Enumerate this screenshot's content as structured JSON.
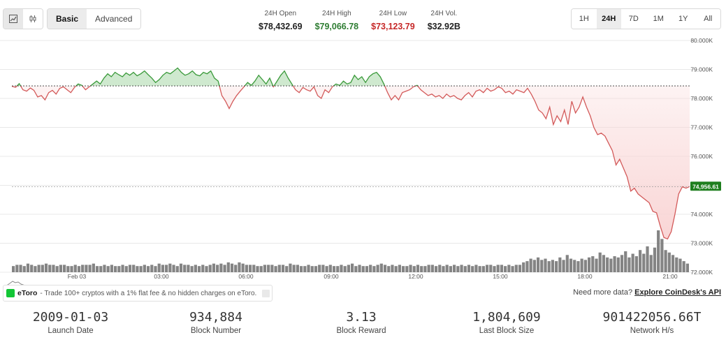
{
  "toolbar": {
    "icons": [
      "line-chart-icon",
      "candlestick-icon"
    ],
    "modes": [
      "Basic",
      "Advanced"
    ],
    "active_mode": "Basic",
    "ranges": [
      "1H",
      "24H",
      "7D",
      "1M",
      "1Y",
      "All"
    ],
    "active_range": "24H"
  },
  "stats": [
    {
      "label": "24H Open",
      "value": "$78,432.69",
      "color": "#222222"
    },
    {
      "label": "24H High",
      "value": "$79,066.78",
      "color": "#2e7d32"
    },
    {
      "label": "24H Low",
      "value": "$73,123.79",
      "color": "#c62828"
    },
    {
      "label": "24H Vol.",
      "value": "$32.92B",
      "color": "#222222"
    }
  ],
  "chart_data": {
    "type": "line",
    "reference_price": 78432.69,
    "current_price_label": "74,956.61",
    "ylim": [
      72000,
      80000
    ],
    "y_ticks": [
      "80.000K",
      "79.000K",
      "78.000K",
      "77.000K",
      "76.000K",
      "75.000K",
      "74.000K",
      "73.000K",
      "72.000K"
    ],
    "x_ticks": [
      "Feb 03",
      "03:00",
      "06:00",
      "09:00",
      "12:00",
      "15:00",
      "18:00",
      "21:00"
    ],
    "colors": {
      "above": "#3a9a3a",
      "below": "#d35a5a",
      "above_fill": "#cfe9cf",
      "below_fill": "#f9d5d5",
      "price_tag": "#1e7e1e",
      "volume": "#6e6e6e"
    },
    "series": [
      {
        "values": [
          78420,
          78380,
          78510,
          78300,
          78250,
          78360,
          78280,
          78050,
          78100,
          77950,
          78200,
          78280,
          78150,
          78350,
          78400,
          78300,
          78200,
          78380,
          78500,
          78450,
          78300,
          78400,
          78500,
          78600,
          78500,
          78700,
          78850,
          78750,
          78900,
          78820,
          78750,
          78880,
          78800,
          78900,
          78780,
          78850,
          78950,
          78820,
          78700,
          78550,
          78650,
          78800,
          78900,
          78850,
          78950,
          79050,
          78900,
          78800,
          78850,
          78950,
          78820,
          78780,
          78900,
          78850,
          78950,
          78700,
          78600,
          78100,
          77900,
          77650,
          77900,
          78100,
          78250,
          78400,
          78550,
          78450,
          78600,
          78800,
          78650,
          78500,
          78700,
          78400,
          78600,
          78800,
          78950,
          78700,
          78500,
          78300,
          78200,
          78380,
          78300,
          78250,
          78400,
          78100,
          78000,
          78300,
          78200,
          78400,
          78500,
          78450,
          78600,
          78500,
          78550,
          78800,
          78650,
          78750,
          78550,
          78750,
          78850,
          78900,
          78750,
          78500,
          78200,
          77950,
          78100,
          77950,
          78200,
          78250,
          78300,
          78400,
          78450,
          78300,
          78200,
          78100,
          78150,
          78050,
          78100,
          78000,
          78150,
          78050,
          78100,
          78000,
          77950,
          78100,
          78200,
          78050,
          78250,
          78300,
          78200,
          78350,
          78250,
          78300,
          78400,
          78350,
          78200,
          78250,
          78150,
          78300,
          78250,
          78200,
          78350,
          78150,
          77900,
          77600,
          77500,
          77300,
          77700,
          77100,
          77400,
          77200,
          77600,
          77100,
          77900,
          77500,
          77700,
          78050,
          77700,
          77400,
          77000,
          76750,
          76800,
          76700,
          76450,
          76200,
          75700,
          75900,
          75600,
          75300,
          74800,
          74900,
          74700,
          74600,
          74500,
          74400,
          74100,
          74050,
          73600,
          73200,
          73150,
          73400,
          74000,
          74700,
          74950,
          74900,
          74956.61
        ]
      }
    ],
    "volume": [
      5,
      6,
      6,
      5,
      7,
      6,
      5,
      6,
      6,
      7,
      6,
      6,
      5,
      6,
      6,
      5,
      5,
      6,
      5,
      6,
      6,
      6,
      7,
      5,
      5,
      6,
      5,
      6,
      5,
      5,
      6,
      5,
      6,
      6,
      5,
      5,
      6,
      5,
      6,
      5,
      7,
      6,
      6,
      7,
      6,
      5,
      7,
      6,
      6,
      5,
      6,
      5,
      6,
      5,
      6,
      7,
      6,
      7,
      6,
      8,
      7,
      6,
      8,
      7,
      6,
      6,
      6,
      5,
      5,
      6,
      6,
      6,
      5,
      6,
      6,
      5,
      7,
      6,
      6,
      5,
      5,
      6,
      5,
      5,
      6,
      6,
      5,
      6,
      5,
      5,
      6,
      5,
      6,
      7,
      5,
      6,
      5,
      5,
      6,
      5,
      6,
      7,
      6,
      5,
      6,
      5,
      6,
      5,
      5,
      6,
      5,
      6,
      5,
      5,
      6,
      6,
      5,
      6,
      5,
      6,
      5,
      6,
      5,
      6,
      5,
      6,
      5,
      6,
      5,
      5,
      6,
      6,
      5,
      6,
      6,
      5,
      6,
      5,
      6,
      6,
      8,
      9,
      11,
      10,
      12,
      10,
      11,
      9,
      10,
      9,
      12,
      10,
      14,
      11,
      10,
      9,
      11,
      10,
      12,
      13,
      11,
      16,
      14,
      12,
      11,
      13,
      12,
      14,
      17,
      12,
      15,
      13,
      18,
      15,
      21,
      14,
      20,
      34,
      27,
      18,
      16,
      14,
      12,
      11,
      9,
      7
    ]
  },
  "etoro": {
    "name": "eToro",
    "text": "- Trade 100+ cryptos with a 1% flat fee & no hidden charges on eToro."
  },
  "api": {
    "prefix": "Need more data?",
    "link": "Explore CoinDesk's API"
  },
  "metrics": [
    {
      "value": "2009-01-03",
      "label": "Launch Date"
    },
    {
      "value": "934,884",
      "label": "Block Number"
    },
    {
      "value": "3.13",
      "label": "Block Reward"
    },
    {
      "value": "1,804,609",
      "label": "Last Block Size"
    },
    {
      "value": "901422056.66T",
      "label": "Network H/s"
    }
  ]
}
